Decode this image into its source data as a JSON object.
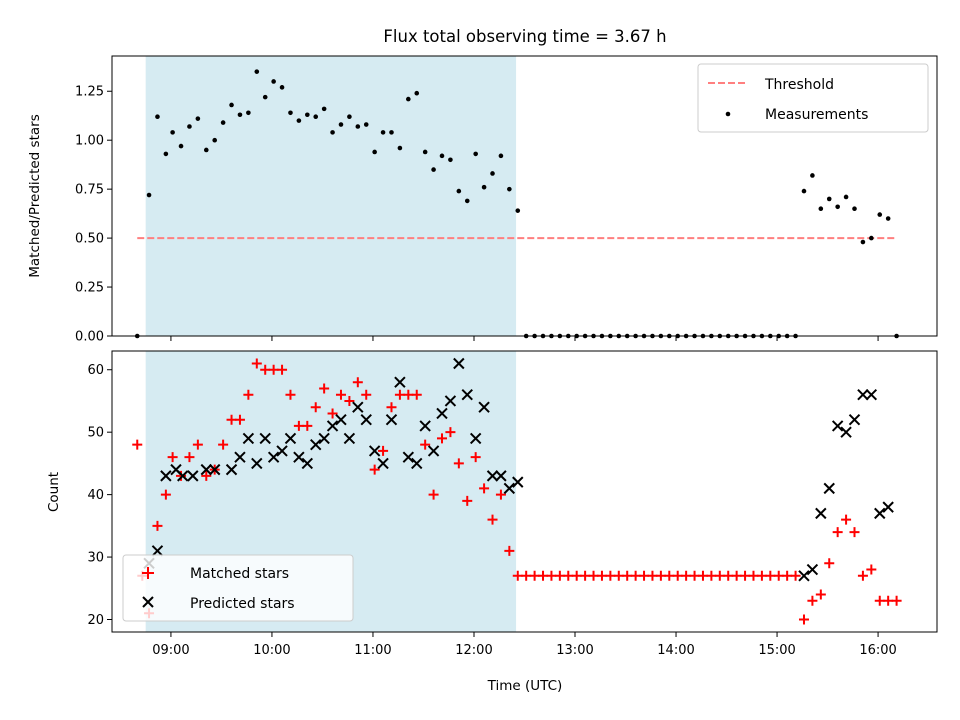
{
  "chart_data": [
    {
      "type": "scatter",
      "title": "Flux total observing time = 3.67 h",
      "xlabel": "",
      "ylabel": "Matched/Predicted stars",
      "xlim": [
        "08:25",
        "16:35"
      ],
      "ylim": [
        0,
        1.43
      ],
      "yticks": [
        "0.00",
        "0.25",
        "0.50",
        "0.75",
        "1.00",
        "1.25"
      ],
      "xticks": [
        "09:00",
        "10:00",
        "11:00",
        "12:00",
        "13:00",
        "14:00",
        "15:00",
        "16:00"
      ],
      "shaded_span": [
        "08:45",
        "12:25"
      ],
      "threshold": {
        "name": "Threshold",
        "y": 0.5,
        "x": [
          "08:40",
          "16:10"
        ],
        "color": "#ff7f7f"
      },
      "legend": {
        "position": "top-right",
        "entries": [
          "Threshold",
          "Measurements"
        ]
      },
      "series": [
        {
          "name": "Measurements",
          "color": "#000000",
          "points": [
            [
              "08:40",
              0.0
            ],
            [
              "08:47",
              0.72
            ],
            [
              "08:52",
              1.12
            ],
            [
              "08:57",
              0.93
            ],
            [
              "09:01",
              1.04
            ],
            [
              "09:06",
              0.97
            ],
            [
              "09:11",
              1.07
            ],
            [
              "09:16",
              1.11
            ],
            [
              "09:21",
              0.95
            ],
            [
              "09:26",
              1.0
            ],
            [
              "09:31",
              1.09
            ],
            [
              "09:36",
              1.18
            ],
            [
              "09:41",
              1.13
            ],
            [
              "09:46",
              1.14
            ],
            [
              "09:51",
              1.35
            ],
            [
              "09:56",
              1.22
            ],
            [
              "10:01",
              1.3
            ],
            [
              "10:06",
              1.27
            ],
            [
              "10:11",
              1.14
            ],
            [
              "10:16",
              1.1
            ],
            [
              "10:21",
              1.13
            ],
            [
              "10:26",
              1.12
            ],
            [
              "10:31",
              1.16
            ],
            [
              "10:36",
              1.04
            ],
            [
              "10:41",
              1.08
            ],
            [
              "10:46",
              1.12
            ],
            [
              "10:51",
              1.07
            ],
            [
              "10:56",
              1.08
            ],
            [
              "11:01",
              0.94
            ],
            [
              "11:06",
              1.04
            ],
            [
              "11:11",
              1.04
            ],
            [
              "11:16",
              0.96
            ],
            [
              "11:21",
              1.21
            ],
            [
              "11:26",
              1.24
            ],
            [
              "11:31",
              0.94
            ],
            [
              "11:36",
              0.85
            ],
            [
              "11:41",
              0.92
            ],
            [
              "11:46",
              0.9
            ],
            [
              "11:51",
              0.74
            ],
            [
              "11:56",
              0.69
            ],
            [
              "12:01",
              0.93
            ],
            [
              "12:06",
              0.76
            ],
            [
              "12:11",
              0.83
            ],
            [
              "12:16",
              0.92
            ],
            [
              "12:21",
              0.75
            ],
            [
              "12:26",
              0.64
            ],
            [
              "12:31",
              0.0
            ],
            [
              "12:36",
              0.0
            ],
            [
              "12:41",
              0.0
            ],
            [
              "12:46",
              0.0
            ],
            [
              "12:51",
              0.0
            ],
            [
              "12:56",
              0.0
            ],
            [
              "13:01",
              0.0
            ],
            [
              "13:06",
              0.0
            ],
            [
              "13:11",
              0.0
            ],
            [
              "13:16",
              0.0
            ],
            [
              "13:21",
              0.0
            ],
            [
              "13:26",
              0.0
            ],
            [
              "13:31",
              0.0
            ],
            [
              "13:36",
              0.0
            ],
            [
              "13:41",
              0.0
            ],
            [
              "13:46",
              0.0
            ],
            [
              "13:51",
              0.0
            ],
            [
              "13:56",
              0.0
            ],
            [
              "14:01",
              0.0
            ],
            [
              "14:06",
              0.0
            ],
            [
              "14:11",
              0.0
            ],
            [
              "14:16",
              0.0
            ],
            [
              "14:21",
              0.0
            ],
            [
              "14:26",
              0.0
            ],
            [
              "14:31",
              0.0
            ],
            [
              "14:36",
              0.0
            ],
            [
              "14:41",
              0.0
            ],
            [
              "14:46",
              0.0
            ],
            [
              "14:51",
              0.0
            ],
            [
              "14:56",
              0.0
            ],
            [
              "15:01",
              0.0
            ],
            [
              "15:06",
              0.0
            ],
            [
              "15:11",
              0.0
            ],
            [
              "15:16",
              0.74
            ],
            [
              "15:21",
              0.82
            ],
            [
              "15:26",
              0.65
            ],
            [
              "15:31",
              0.7
            ],
            [
              "15:36",
              0.66
            ],
            [
              "15:41",
              0.71
            ],
            [
              "15:46",
              0.65
            ],
            [
              "15:51",
              0.48
            ],
            [
              "15:56",
              0.5
            ],
            [
              "16:01",
              0.62
            ],
            [
              "16:06",
              0.6
            ],
            [
              "16:11",
              0.0
            ]
          ]
        }
      ]
    },
    {
      "type": "scatter",
      "title": "",
      "xlabel": "Time (UTC)",
      "ylabel": "Count",
      "xlim": [
        "08:25",
        "16:35"
      ],
      "ylim": [
        18,
        63
      ],
      "yticks": [
        "20",
        "30",
        "40",
        "50",
        "60"
      ],
      "xticks": [
        "09:00",
        "10:00",
        "11:00",
        "12:00",
        "13:00",
        "14:00",
        "15:00",
        "16:00"
      ],
      "shaded_span": [
        "08:45",
        "12:25"
      ],
      "legend": {
        "position": "bottom-left",
        "entries": [
          "Matched stars",
          "Predicted stars"
        ]
      },
      "series": [
        {
          "name": "Matched stars",
          "marker": "plus",
          "color": "#ff0000",
          "points": [
            [
              "08:40",
              48
            ],
            [
              "08:43",
              27
            ],
            [
              "08:47",
              21
            ],
            [
              "08:52",
              35
            ],
            [
              "08:57",
              40
            ],
            [
              "09:01",
              46
            ],
            [
              "09:06",
              43
            ],
            [
              "09:11",
              46
            ],
            [
              "09:16",
              48
            ],
            [
              "09:21",
              43
            ],
            [
              "09:26",
              44
            ],
            [
              "09:31",
              48
            ],
            [
              "09:36",
              52
            ],
            [
              "09:41",
              52
            ],
            [
              "09:46",
              56
            ],
            [
              "09:51",
              61
            ],
            [
              "09:56",
              60
            ],
            [
              "10:01",
              60
            ],
            [
              "10:06",
              60
            ],
            [
              "10:11",
              56
            ],
            [
              "10:16",
              51
            ],
            [
              "10:21",
              51
            ],
            [
              "10:26",
              54
            ],
            [
              "10:31",
              57
            ],
            [
              "10:36",
              53
            ],
            [
              "10:41",
              56
            ],
            [
              "10:46",
              55
            ],
            [
              "10:51",
              58
            ],
            [
              "10:56",
              56
            ],
            [
              "11:01",
              44
            ],
            [
              "11:06",
              47
            ],
            [
              "11:11",
              54
            ],
            [
              "11:16",
              56
            ],
            [
              "11:21",
              56
            ],
            [
              "11:26",
              56
            ],
            [
              "11:31",
              48
            ],
            [
              "11:36",
              40
            ],
            [
              "11:41",
              49
            ],
            [
              "11:46",
              50
            ],
            [
              "11:51",
              45
            ],
            [
              "11:56",
              39
            ],
            [
              "12:01",
              46
            ],
            [
              "12:06",
              41
            ],
            [
              "12:11",
              36
            ],
            [
              "12:16",
              40
            ],
            [
              "12:21",
              31
            ],
            [
              "12:26",
              27
            ],
            [
              "12:31",
              27
            ],
            [
              "12:36",
              27
            ],
            [
              "12:41",
              27
            ],
            [
              "12:46",
              27
            ],
            [
              "12:51",
              27
            ],
            [
              "12:56",
              27
            ],
            [
              "13:01",
              27
            ],
            [
              "13:06",
              27
            ],
            [
              "13:11",
              27
            ],
            [
              "13:16",
              27
            ],
            [
              "13:21",
              27
            ],
            [
              "13:26",
              27
            ],
            [
              "13:31",
              27
            ],
            [
              "13:36",
              27
            ],
            [
              "13:41",
              27
            ],
            [
              "13:46",
              27
            ],
            [
              "13:51",
              27
            ],
            [
              "13:56",
              27
            ],
            [
              "14:01",
              27
            ],
            [
              "14:06",
              27
            ],
            [
              "14:11",
              27
            ],
            [
              "14:16",
              27
            ],
            [
              "14:21",
              27
            ],
            [
              "14:26",
              27
            ],
            [
              "14:31",
              27
            ],
            [
              "14:36",
              27
            ],
            [
              "14:41",
              27
            ],
            [
              "14:46",
              27
            ],
            [
              "14:51",
              27
            ],
            [
              "14:56",
              27
            ],
            [
              "15:01",
              27
            ],
            [
              "15:06",
              27
            ],
            [
              "15:11",
              27
            ],
            [
              "15:16",
              20
            ],
            [
              "15:21",
              23
            ],
            [
              "15:26",
              24
            ],
            [
              "15:31",
              29
            ],
            [
              "15:36",
              34
            ],
            [
              "15:41",
              36
            ],
            [
              "15:46",
              34
            ],
            [
              "15:51",
              27
            ],
            [
              "15:56",
              28
            ],
            [
              "16:01",
              23
            ],
            [
              "16:06",
              23
            ],
            [
              "16:11",
              23
            ]
          ]
        },
        {
          "name": "Predicted stars",
          "marker": "x",
          "color": "#000000",
          "points": [
            [
              "08:47",
              29
            ],
            [
              "08:52",
              31
            ],
            [
              "08:57",
              43
            ],
            [
              "09:03",
              44
            ],
            [
              "09:07",
              43
            ],
            [
              "09:13",
              43
            ],
            [
              "09:21",
              44
            ],
            [
              "09:26",
              44
            ],
            [
              "09:36",
              44
            ],
            [
              "09:41",
              46
            ],
            [
              "09:46",
              49
            ],
            [
              "09:51",
              45
            ],
            [
              "09:56",
              49
            ],
            [
              "10:01",
              46
            ],
            [
              "10:06",
              47
            ],
            [
              "10:11",
              49
            ],
            [
              "10:16",
              46
            ],
            [
              "10:21",
              45
            ],
            [
              "10:26",
              48
            ],
            [
              "10:31",
              49
            ],
            [
              "10:36",
              51
            ],
            [
              "10:41",
              52
            ],
            [
              "10:46",
              49
            ],
            [
              "10:51",
              54
            ],
            [
              "10:56",
              52
            ],
            [
              "11:01",
              47
            ],
            [
              "11:06",
              45
            ],
            [
              "11:11",
              52
            ],
            [
              "11:16",
              58
            ],
            [
              "11:21",
              46
            ],
            [
              "11:26",
              45
            ],
            [
              "11:31",
              51
            ],
            [
              "11:36",
              47
            ],
            [
              "11:41",
              53
            ],
            [
              "11:46",
              55
            ],
            [
              "11:51",
              61
            ],
            [
              "11:56",
              56
            ],
            [
              "12:01",
              49
            ],
            [
              "12:06",
              54
            ],
            [
              "12:11",
              43
            ],
            [
              "12:16",
              43
            ],
            [
              "12:21",
              41
            ],
            [
              "12:26",
              42
            ],
            [
              "15:16",
              27
            ],
            [
              "15:21",
              28
            ],
            [
              "15:26",
              37
            ],
            [
              "15:31",
              41
            ],
            [
              "15:36",
              51
            ],
            [
              "15:41",
              50
            ],
            [
              "15:46",
              52
            ],
            [
              "15:51",
              56
            ],
            [
              "15:56",
              56
            ],
            [
              "16:01",
              37
            ],
            [
              "16:06",
              38
            ]
          ]
        }
      ]
    }
  ]
}
